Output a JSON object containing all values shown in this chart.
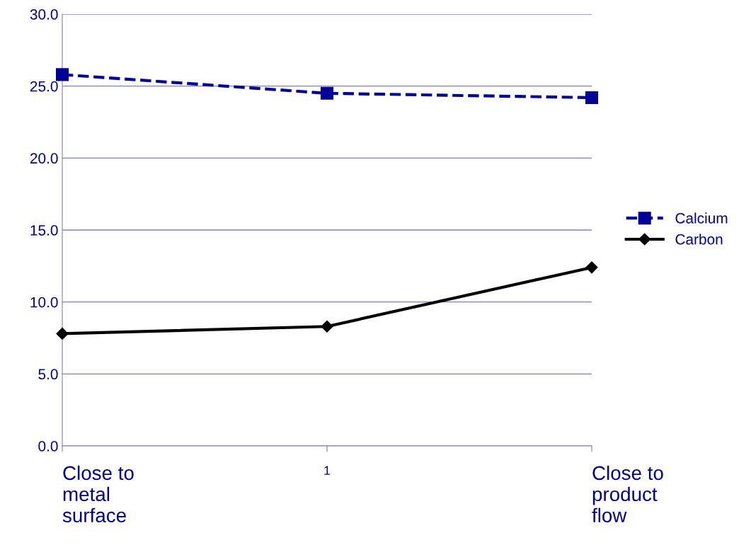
{
  "chart_data": {
    "type": "line",
    "categories": [
      "Close to\nmetal\nsurface",
      "1",
      "Close to\nproduct\nflow"
    ],
    "series": [
      {
        "name": "Calcium",
        "color": "#000099",
        "values": [
          25.8,
          24.5,
          24.2
        ],
        "marker": "square",
        "line_style": "dashed"
      },
      {
        "name": "Carbon",
        "color": "#000000",
        "values": [
          7.8,
          8.3,
          12.4
        ],
        "marker": "diamond",
        "line_style": "solid"
      }
    ],
    "ylim": [
      0,
      30
    ],
    "yticks": [
      {
        "value": 0,
        "label": "0.0"
      },
      {
        "value": 5,
        "label": "5.0"
      },
      {
        "value": 10,
        "label": "10.0"
      },
      {
        "value": 15,
        "label": "15.0"
      },
      {
        "value": 20,
        "label": "20.0"
      },
      {
        "value": 25,
        "label": "25.0"
      },
      {
        "value": 30,
        "label": "30.0"
      }
    ],
    "grid": "y",
    "legend": "right"
  }
}
